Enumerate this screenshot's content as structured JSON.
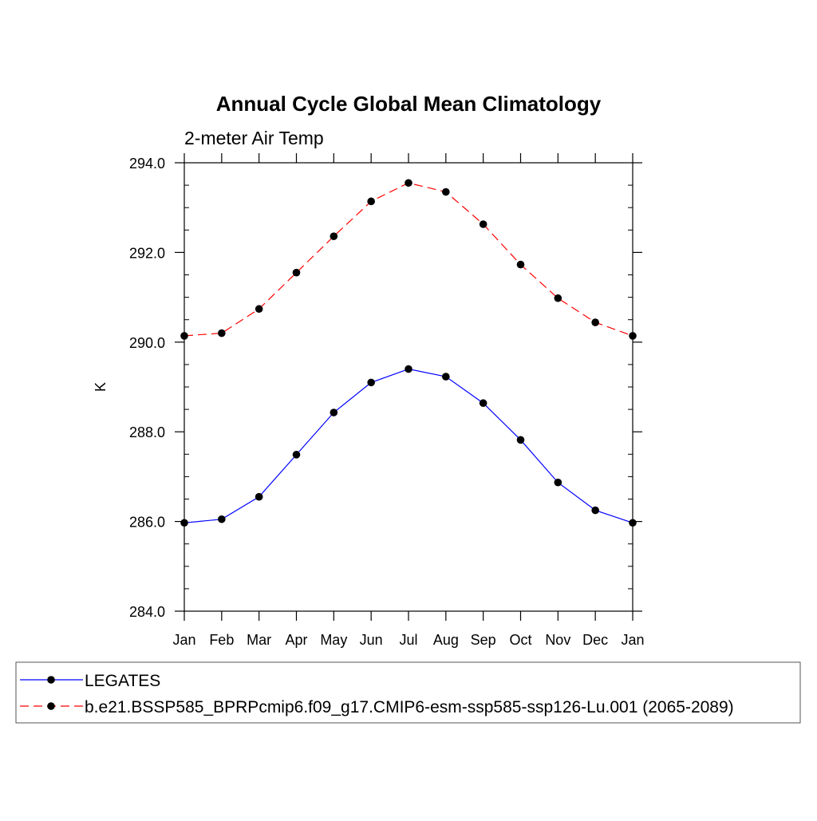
{
  "chart_data": {
    "type": "line",
    "title": "Annual Cycle Global Mean Climatology",
    "subtitle": "2-meter Air Temp",
    "xlabel": "",
    "ylabel": "K",
    "categories": [
      "Jan",
      "Feb",
      "Mar",
      "Apr",
      "May",
      "Jun",
      "Jul",
      "Aug",
      "Sep",
      "Oct",
      "Nov",
      "Dec",
      "Jan"
    ],
    "ylim": [
      284.0,
      294.0
    ],
    "yticks": [
      "284.0",
      "286.0",
      "288.0",
      "290.0",
      "292.0",
      "294.0"
    ],
    "grid": false,
    "legend_position": "bottom",
    "series": [
      {
        "name": "LEGATES",
        "color": "#0000ff",
        "dash": "solid",
        "marker": "circle",
        "values": [
          285.97,
          286.05,
          286.55,
          287.49,
          288.43,
          289.1,
          289.4,
          289.23,
          288.64,
          287.82,
          286.87,
          286.25,
          285.97
        ]
      },
      {
        "name": "b.e21.BSSP585_BPRPcmip6.f09_g17.CMIP6-esm-ssp585-ssp126-Lu.001 (2065-2089)",
        "color": "#ff0000",
        "dash": "dashed",
        "marker": "circle",
        "values": [
          290.14,
          290.2,
          290.74,
          291.55,
          292.36,
          293.14,
          293.55,
          293.35,
          292.63,
          291.73,
          290.98,
          290.44,
          290.14
        ]
      }
    ]
  }
}
